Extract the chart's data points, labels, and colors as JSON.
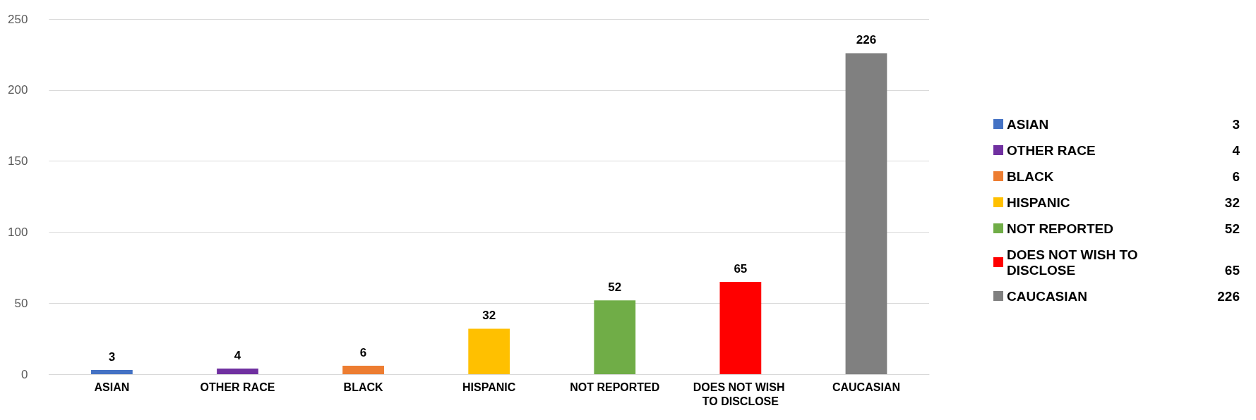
{
  "chart_data": {
    "type": "bar",
    "categories": [
      "ASIAN",
      "OTHER RACE",
      "BLACK",
      "HISPANIC",
      "NOT REPORTED",
      "DOES NOT WISH TO DISCLOSE",
      "CAUCASIAN"
    ],
    "stacked": true,
    "series": [
      {
        "name": "ASIAN",
        "color": "#4472c4",
        "values": [
          3,
          null,
          null,
          null,
          null,
          null,
          null
        ],
        "value_labels": [
          "3",
          null,
          null,
          null,
          null,
          null,
          null
        ]
      },
      {
        "name": "OTHER RACE",
        "color": "#7030a0",
        "values": [
          null,
          4,
          null,
          null,
          null,
          null,
          null
        ],
        "value_labels": [
          null,
          "4",
          null,
          null,
          null,
          null,
          null
        ]
      },
      {
        "name": "BLACK",
        "color": "#ed7d31",
        "values": [
          null,
          null,
          6,
          null,
          null,
          null,
          null
        ],
        "value_labels": [
          null,
          null,
          "6",
          null,
          null,
          null,
          null
        ]
      },
      {
        "name": "HISPANIC",
        "color": "#ffc000",
        "values": [
          null,
          null,
          null,
          32,
          null,
          null,
          null
        ],
        "value_labels": [
          null,
          null,
          null,
          "32",
          null,
          null,
          null
        ]
      },
      {
        "name": "NOT REPORTED",
        "color": "#70ad47",
        "values": [
          null,
          null,
          null,
          null,
          52,
          null,
          null
        ],
        "value_labels": [
          null,
          null,
          null,
          null,
          "52",
          null,
          null
        ]
      },
      {
        "name": "DOES NOT WISH TO DISCLOSE",
        "color": "#ff0000",
        "values": [
          null,
          null,
          null,
          null,
          null,
          65,
          null
        ],
        "value_labels": [
          null,
          null,
          null,
          null,
          null,
          "65",
          null
        ]
      },
      {
        "name": "CAUCASIAN",
        "color": "#808080",
        "values": [
          null,
          null,
          null,
          null,
          null,
          null,
          226
        ],
        "value_labels": [
          null,
          null,
          null,
          null,
          null,
          null,
          "226"
        ]
      }
    ],
    "ylim": [
      0,
      250
    ],
    "yticks": [
      0,
      50,
      100,
      150,
      200,
      250
    ],
    "grid": "y",
    "legend": "right"
  }
}
